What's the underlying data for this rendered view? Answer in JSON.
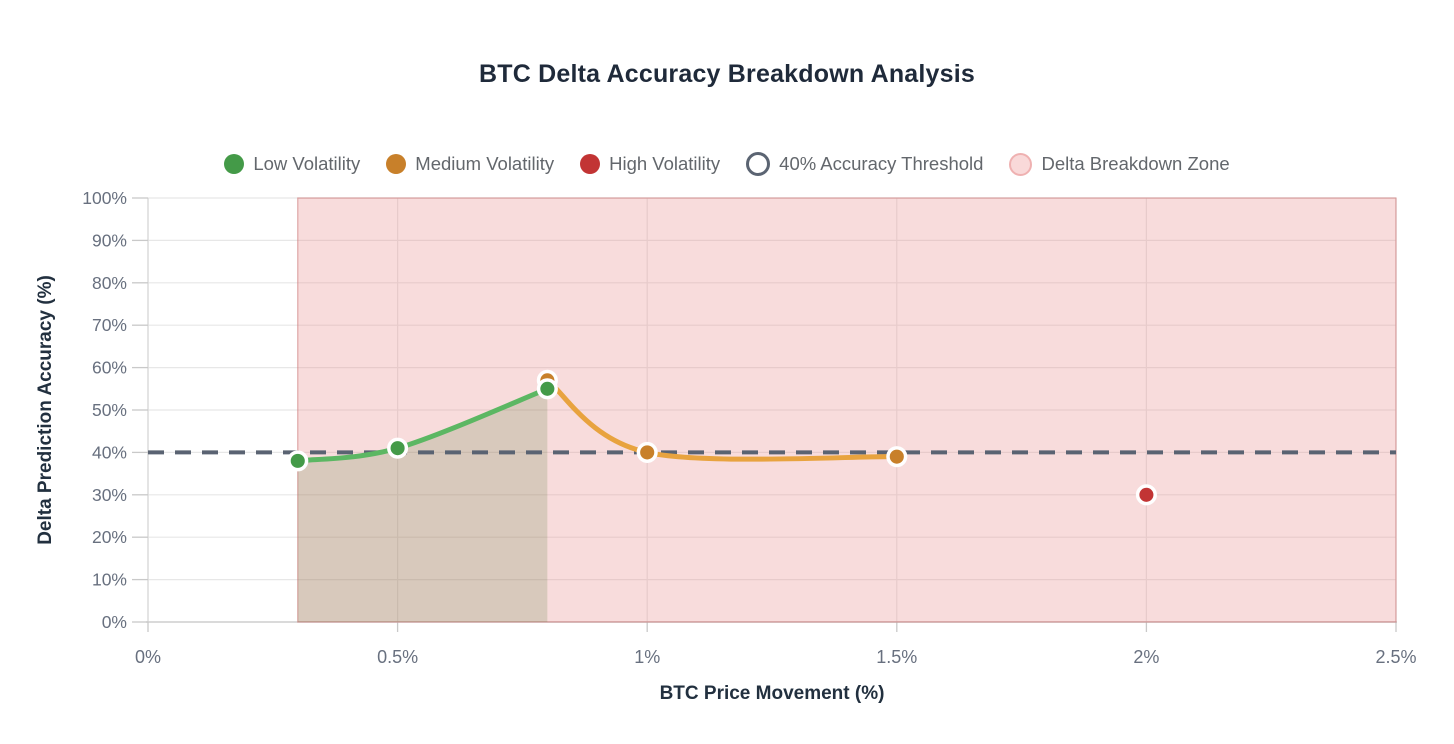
{
  "legend": {
    "items": [
      {
        "id": "low-volatility",
        "label": "Low Volatility",
        "marker": "dot-icon",
        "color": "#449a48"
      },
      {
        "id": "medium-volatility",
        "label": "Medium Volatility",
        "marker": "dot-icon",
        "color": "#c8802a"
      },
      {
        "id": "high-volatility",
        "label": "High Volatility",
        "marker": "dot-icon",
        "color": "#c23434"
      },
      {
        "id": "accuracy-threshold",
        "label": "40% Accuracy Threshold",
        "marker": "ring-icon",
        "color": "#5b6472"
      },
      {
        "id": "breakdown-zone",
        "label": "Delta Breakdown Zone",
        "marker": "zone-icon",
        "color": "#f9d9d9"
      }
    ]
  },
  "chart_data": {
    "type": "line",
    "title": "BTC Delta Accuracy Breakdown Analysis",
    "xlabel": "BTC Price Movement (%)",
    "ylabel": "Delta Prediction Accuracy (%)",
    "xlim": [
      0,
      2.5
    ],
    "ylim": [
      0,
      100
    ],
    "grid": true,
    "legend_position": "top",
    "x_ticks": [
      {
        "value": 0,
        "label": "0%"
      },
      {
        "value": 0.5,
        "label": "0.5%"
      },
      {
        "value": 1,
        "label": "1%"
      },
      {
        "value": 1.5,
        "label": "1.5%"
      },
      {
        "value": 2,
        "label": "2%"
      },
      {
        "value": 2.5,
        "label": "2.5%"
      }
    ],
    "y_ticks": [
      {
        "value": 0,
        "label": "0%"
      },
      {
        "value": 10,
        "label": "10%"
      },
      {
        "value": 20,
        "label": "20%"
      },
      {
        "value": 30,
        "label": "30%"
      },
      {
        "value": 40,
        "label": "40%"
      },
      {
        "value": 50,
        "label": "50%"
      },
      {
        "value": 60,
        "label": "60%"
      },
      {
        "value": 70,
        "label": "70%"
      },
      {
        "value": 80,
        "label": "80%"
      },
      {
        "value": 90,
        "label": "90%"
      },
      {
        "value": 100,
        "label": "100%"
      }
    ],
    "series": [
      {
        "name": "Low Volatility",
        "line_color": "#5cb763",
        "point_color": "#449a48",
        "points": [
          [
            0.3,
            38
          ],
          [
            0.5,
            41
          ],
          [
            0.8,
            55
          ]
        ],
        "area_fill": true,
        "area_color": "rgba(88,125,60,0.2)"
      },
      {
        "name": "Medium Volatility",
        "line_color": "#e8a33f",
        "point_color": "#c8802a",
        "points": [
          [
            0.8,
            57
          ],
          [
            1.0,
            40
          ],
          [
            1.5,
            39
          ]
        ],
        "area_fill": false
      },
      {
        "name": "High Volatility",
        "line_color": "#c23434",
        "point_color": "#c23434",
        "points": [
          [
            2.0,
            30
          ]
        ],
        "area_fill": false
      }
    ],
    "threshold": {
      "label": "40% Accuracy Threshold",
      "value": 40,
      "color": "#5a6372"
    },
    "breakdown_zone": {
      "label": "Delta Breakdown Zone",
      "x_start": 0.3,
      "x_end": 2.5,
      "fill": "rgba(232,138,138,0.3)",
      "border": "rgba(205,120,120,0.6)"
    }
  }
}
